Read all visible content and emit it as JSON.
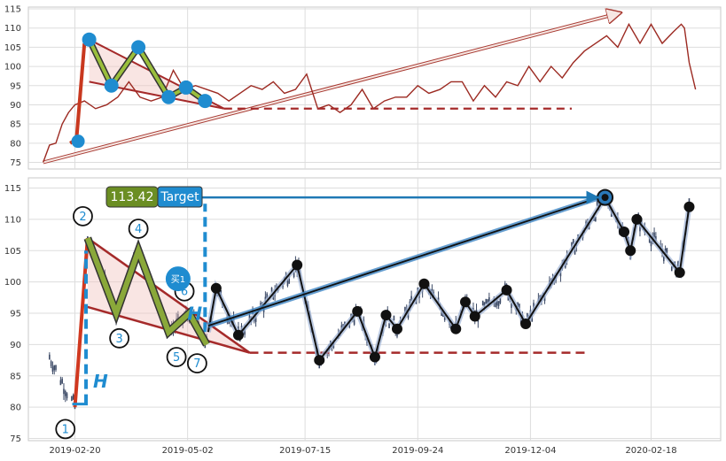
{
  "chart_data": [
    {
      "type": "line",
      "panel": "overview",
      "ylim": [
        73,
        116
      ],
      "yticks": [
        75,
        80,
        85,
        90,
        95,
        100,
        105,
        110,
        115
      ],
      "xlim": [
        "2019-01-28",
        "2020-03-25"
      ],
      "grid": true,
      "series": [
        {
          "color": "#9c2a22",
          "x": [
            "2019-01-31",
            "2019-02-04",
            "2019-02-08",
            "2019-02-12",
            "2019-02-16",
            "2019-02-20",
            "2019-02-26",
            "2019-03-05",
            "2019-03-12",
            "2019-03-19",
            "2019-03-26",
            "2019-04-02",
            "2019-04-09",
            "2019-04-16",
            "2019-04-23",
            "2019-04-30",
            "2019-05-07",
            "2019-05-14",
            "2019-05-21",
            "2019-05-28",
            "2019-06-04",
            "2019-06-11",
            "2019-06-18",
            "2019-06-25",
            "2019-07-02",
            "2019-07-09",
            "2019-07-16",
            "2019-07-23",
            "2019-07-30",
            "2019-08-06",
            "2019-08-13",
            "2019-08-20",
            "2019-08-27",
            "2019-09-03",
            "2019-09-10",
            "2019-09-17",
            "2019-09-24",
            "2019-10-01",
            "2019-10-08",
            "2019-10-15",
            "2019-10-22",
            "2019-10-29",
            "2019-11-05",
            "2019-11-12",
            "2019-11-19",
            "2019-11-26",
            "2019-12-03",
            "2019-12-10",
            "2019-12-17",
            "2019-12-24",
            "2019-12-31",
            "2020-01-07",
            "2020-01-14",
            "2020-01-21",
            "2020-01-28",
            "2020-02-04",
            "2020-02-11",
            "2020-02-18",
            "2020-02-25",
            "2020-03-03",
            "2020-03-08",
            "2020-03-10",
            "2020-03-13",
            "2020-03-17"
          ],
          "values": [
            75,
            79.5,
            80,
            85,
            88,
            90,
            91,
            89,
            90,
            92,
            96,
            92,
            91,
            92,
            99,
            94,
            95,
            94,
            93,
            91,
            93,
            95,
            94,
            96,
            93,
            94,
            98,
            89,
            90,
            88,
            90,
            94,
            89,
            91,
            92,
            92,
            95,
            93,
            94,
            96,
            96,
            91,
            95,
            92,
            96,
            95,
            100,
            96,
            100,
            97,
            101,
            104,
            106,
            108,
            105,
            111,
            106,
            111,
            106,
            109,
            111,
            110,
            101,
            94
          ]
        },
        {
          "color": "#b03030",
          "x": [
            "2019-02-17",
            "2019-02-21",
            "2019-02-26"
          ],
          "values": [
            80,
            81,
            106
          ]
        }
      ],
      "patterns": {
        "points": [
          {
            "x": "2019-02-22",
            "y": 80.5
          },
          {
            "x": "2019-03-01",
            "y": 107
          },
          {
            "x": "2019-03-15",
            "y": 95
          },
          {
            "x": "2019-04-01",
            "y": 105
          },
          {
            "x": "2019-04-20",
            "y": 92
          },
          {
            "x": "2019-05-01",
            "y": 94.5
          },
          {
            "x": "2019-05-13",
            "y": 91
          }
        ],
        "triangle": [
          {
            "x": "2019-03-01",
            "y": 107
          },
          {
            "x": "2019-05-25",
            "y": 89
          },
          {
            "x": "2019-03-01",
            "y": 96
          }
        ],
        "trend_arrow": {
          "from": {
            "x": "2019-01-31",
            "y": 75
          },
          "to": {
            "x": "2020-01-30",
            "y": 114
          }
        },
        "target_dashed": {
          "from": "2019-05-25",
          "to": "2019-12-30",
          "y": 89
        }
      }
    },
    {
      "type": "candlestick",
      "panel": "detail",
      "ylim": [
        74,
        117
      ],
      "yticks": [
        75,
        80,
        85,
        90,
        95,
        100,
        105,
        110,
        115
      ],
      "xlim": [
        "2019-01-28",
        "2020-03-25"
      ],
      "xticks": [
        "2019-02-20",
        "2019-05-02",
        "2019-07-15",
        "2019-09-24",
        "2019-12-04",
        "2020-02-18"
      ],
      "grid": true,
      "badge": {
        "value": "113.42",
        "label": "Target"
      },
      "buy_marker": "买1",
      "h_labels": [
        "H",
        "H"
      ],
      "circle_labels": [
        {
          "label": "1",
          "x": "2019-02-14",
          "y": 76.5
        },
        {
          "label": "2",
          "x": "2019-02-25",
          "y": 110.5
        },
        {
          "label": "3",
          "x": "2019-03-20",
          "y": 91
        },
        {
          "label": "4",
          "x": "2019-04-01",
          "y": 108.5
        },
        {
          "label": "5",
          "x": "2019-04-25",
          "y": 88
        },
        {
          "label": "6",
          "x": "2019-04-30",
          "y": 98.5
        },
        {
          "label": "7",
          "x": "2019-05-08",
          "y": 87
        }
      ],
      "zigzag_green": [
        {
          "x": "2019-02-20",
          "y": 80
        },
        {
          "x": "2019-02-28",
          "y": 107
        },
        {
          "x": "2019-03-18",
          "y": 95
        },
        {
          "x": "2019-04-01",
          "y": 105
        },
        {
          "x": "2019-04-20",
          "y": 92
        },
        {
          "x": "2019-05-03",
          "y": 95
        },
        {
          "x": "2019-05-14",
          "y": 90
        }
      ],
      "triangle": [
        {
          "x": "2019-02-28",
          "y": 107
        },
        {
          "x": "2019-06-10",
          "y": 88.7
        },
        {
          "x": "2019-02-28",
          "y": 96
        }
      ],
      "target_dashed": {
        "from": "2019-06-10",
        "to": "2020-01-10",
        "y": 88.7
      },
      "projection_arrow": {
        "from": {
          "x": "2019-05-10",
          "y": 113.5
        },
        "to": {
          "x": "2020-01-18",
          "y": 113.5
        }
      },
      "vertical_dashes": [
        {
          "x": "2019-02-27",
          "from": 80.5,
          "to": 105
        },
        {
          "x": "2019-05-13",
          "from": 92,
          "to": 112.5
        }
      ],
      "zigzag_black": [
        {
          "x": "2019-05-15",
          "y": 92
        },
        {
          "x": "2019-05-20",
          "y": 99
        },
        {
          "x": "2019-06-03",
          "y": 91.5
        },
        {
          "x": "2019-07-10",
          "y": 102.7
        },
        {
          "x": "2019-07-24",
          "y": 87.5
        },
        {
          "x": "2019-08-17",
          "y": 95.3
        },
        {
          "x": "2019-08-28",
          "y": 88
        },
        {
          "x": "2019-09-04",
          "y": 94.7
        },
        {
          "x": "2019-09-11",
          "y": 92.5
        },
        {
          "x": "2019-09-28",
          "y": 99.7
        },
        {
          "x": "2019-10-18",
          "y": 92.5
        },
        {
          "x": "2019-10-24",
          "y": 96.8
        },
        {
          "x": "2019-10-30",
          "y": 94.5
        },
        {
          "x": "2019-11-19",
          "y": 98.7
        },
        {
          "x": "2019-12-01",
          "y": 93.3
        },
        {
          "x": "2020-01-20",
          "y": 113.5
        },
        {
          "x": "2020-02-01",
          "y": 108
        },
        {
          "x": "2020-02-05",
          "y": 105
        },
        {
          "x": "2020-02-09",
          "y": 110
        },
        {
          "x": "2020-03-07",
          "y": 101.5
        },
        {
          "x": "2020-03-13",
          "y": 112
        }
      ],
      "blue_upper_line": [
        {
          "x": "2019-05-15",
          "y": 93
        },
        {
          "x": "2020-01-20",
          "y": 113.8
        }
      ]
    }
  ]
}
